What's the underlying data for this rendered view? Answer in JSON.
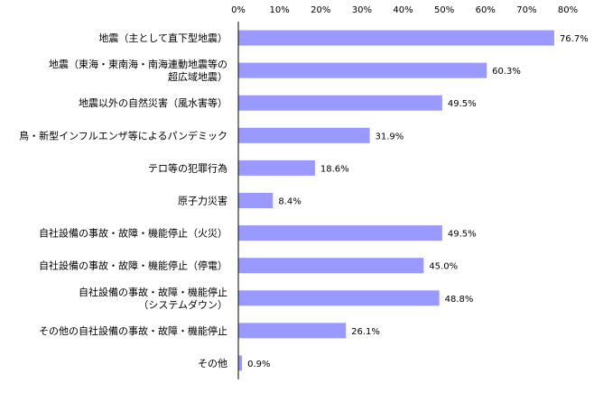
{
  "chart_data": {
    "type": "bar",
    "orientation": "horizontal",
    "categories": [
      [
        "地震（主として直下型地震）"
      ],
      [
        "地震（東海・東南海・南海連動地震等の",
        "超広域地震）"
      ],
      [
        "地震以外の自然災害（風水害等）"
      ],
      [
        "鳥・新型インフルエンザ等によるパンデミック"
      ],
      [
        "テロ等の犯罪行為"
      ],
      [
        "原子力災害"
      ],
      [
        "自社設備の事故・故障・機能停止（火災）"
      ],
      [
        "自社設備の事故・故障・機能停止（停電）"
      ],
      [
        "自社設備の事故・故障・機能停止",
        "（システムダウン）"
      ],
      [
        "その他の自社設備の事故・故障・機能停止"
      ],
      [
        "その他"
      ]
    ],
    "values": [
      76.7,
      60.3,
      49.5,
      31.9,
      18.6,
      8.4,
      49.5,
      45.0,
      48.8,
      26.1,
      0.9
    ],
    "data_labels": [
      "76.7%",
      "60.3%",
      "49.5%",
      "31.9%",
      "18.6%",
      "8.4%",
      "49.5%",
      "45.0%",
      "48.8%",
      "26.1%",
      "0.9%"
    ],
    "x_ticks": [
      "0%",
      "10%",
      "20%",
      "30%",
      "40%",
      "50%",
      "60%",
      "70%",
      "80%"
    ],
    "xlim": [
      0,
      80
    ],
    "axis_position": "top",
    "grid": false,
    "legend": "none",
    "bar_color": "#9999ff"
  }
}
